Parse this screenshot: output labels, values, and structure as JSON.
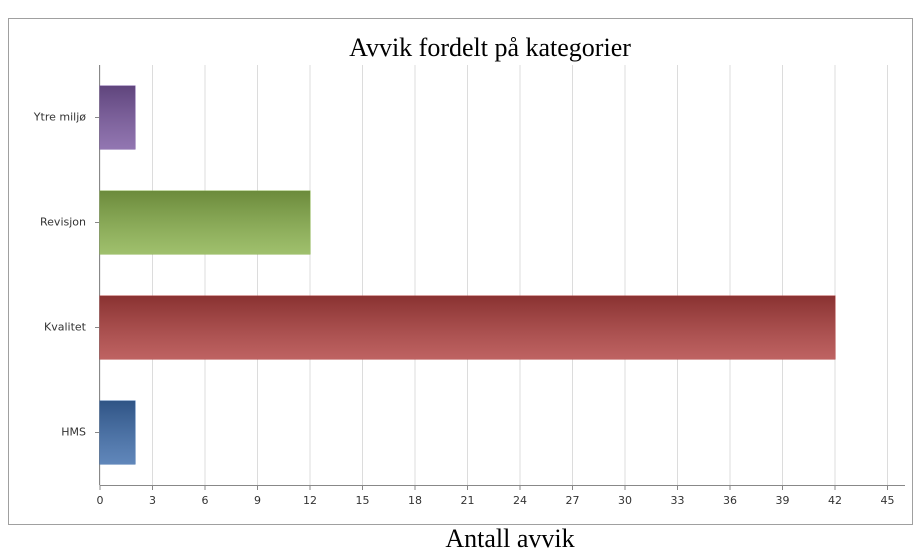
{
  "chart_data": {
    "type": "hbar",
    "title": "Avvik fordelt på kategorier",
    "x_label": "Antall avvik",
    "categories": [
      "HMS",
      "Kvalitet",
      "Revisjon",
      "Ytre miljø"
    ],
    "values": [
      2,
      42,
      12,
      2
    ],
    "colors": [
      "#3d6cab",
      "#b0403f",
      "#8ab24c",
      "#7a58a0"
    ],
    "xlim": [
      0,
      46
    ],
    "xticks": [
      0,
      3,
      6,
      9,
      12,
      15,
      18,
      21,
      24,
      27,
      30,
      33,
      36,
      39,
      42,
      45
    ],
    "grid": true
  }
}
